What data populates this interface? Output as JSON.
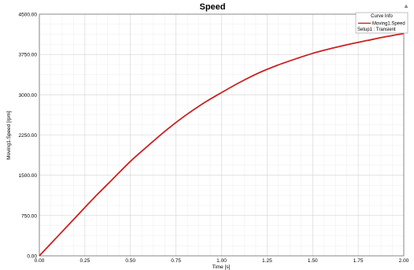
{
  "chart_data": {
    "type": "line",
    "title": "Speed",
    "xlabel": "Time [s]",
    "ylabel": "Moving1.Speed [rpm]",
    "xlim": [
      0,
      2
    ],
    "ylim": [
      0,
      4500
    ],
    "x_ticks": [
      "0.00",
      "0.25",
      "0.50",
      "0.75",
      "1.00",
      "1.25",
      "1.50",
      "1.75",
      "2.00"
    ],
    "y_ticks": [
      "0.00",
      "750.00",
      "1500.00",
      "2250.00",
      "3000.00",
      "3750.00",
      "4500.00"
    ],
    "x_tick_values": [
      0,
      0.25,
      0.5,
      0.75,
      1.0,
      1.25,
      1.5,
      1.75,
      2.0
    ],
    "y_tick_values": [
      0,
      750,
      1500,
      2250,
      3000,
      3750,
      4500
    ],
    "grid": true,
    "minor_grid": true,
    "legend_position": "top-right",
    "legend": {
      "title": "Curve Info",
      "entries": [
        "Moving1.Speed",
        "Setup1 : Transient"
      ]
    },
    "corner_marker": "▲",
    "series": [
      {
        "name": "Moving1.Speed",
        "color": "#cc2020",
        "x": [
          0,
          0.1,
          0.2,
          0.3,
          0.4,
          0.5,
          0.6,
          0.7,
          0.8,
          0.9,
          1.0,
          1.1,
          1.2,
          1.3,
          1.4,
          1.5,
          1.6,
          1.7,
          1.8,
          1.9,
          2.0
        ],
        "values": [
          0,
          360,
          720,
          1080,
          1420,
          1760,
          2060,
          2350,
          2610,
          2840,
          3040,
          3230,
          3400,
          3540,
          3660,
          3770,
          3860,
          3940,
          4010,
          4080,
          4140
        ]
      }
    ]
  }
}
